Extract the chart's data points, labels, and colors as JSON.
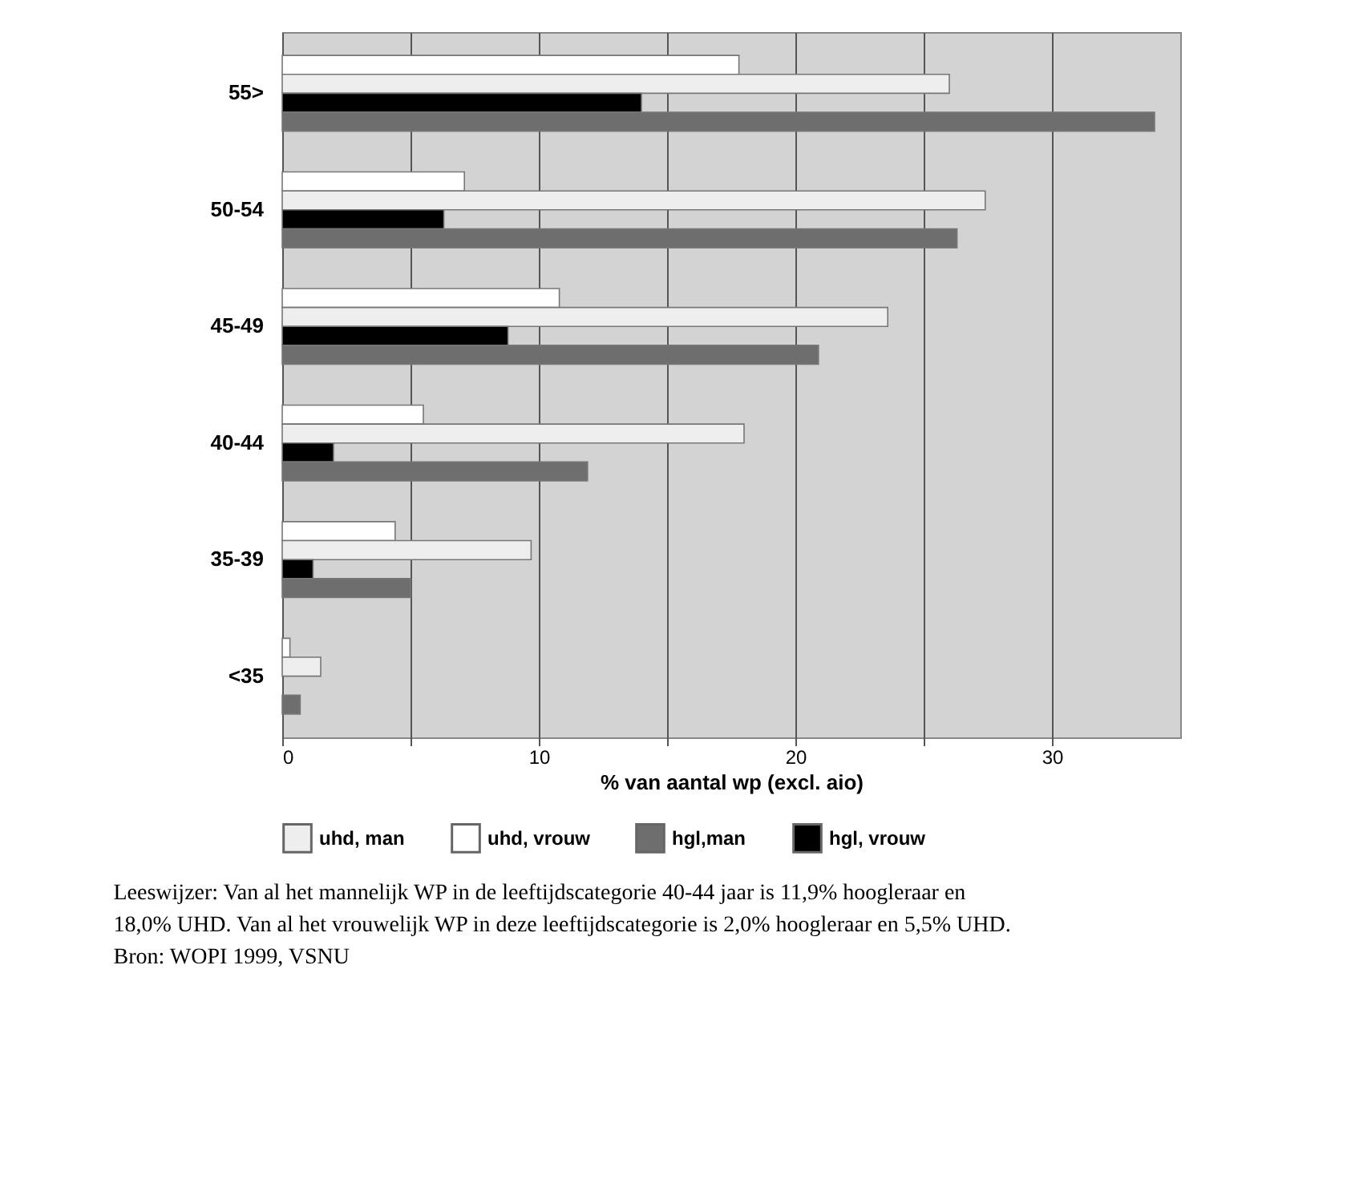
{
  "chart_data": {
    "type": "bar",
    "orientation": "horizontal",
    "categories": [
      "55>",
      "50-54",
      "45-49",
      "40-44",
      "35-39",
      "<35"
    ],
    "series": [
      {
        "name": "uhd, vrouw",
        "color": "#ffffff",
        "values": [
          17.8,
          7.1,
          10.8,
          5.5,
          4.4,
          0.3
        ]
      },
      {
        "name": "uhd, man",
        "color": "#eeeeee",
        "values": [
          26.0,
          27.4,
          23.6,
          18.0,
          9.7,
          1.5
        ]
      },
      {
        "name": "hgl, vrouw",
        "color": "#000000",
        "values": [
          14.0,
          6.3,
          8.8,
          2.0,
          1.2,
          null
        ]
      },
      {
        "name": "hgl,man",
        "color": "#6e6e6e",
        "values": [
          34.0,
          26.3,
          20.9,
          11.9,
          5.0,
          0.7
        ]
      }
    ],
    "xlabel": "% van aantal wp (excl. aio)",
    "xlim": [
      0,
      35
    ],
    "xticks": [
      0,
      {
        "value": 5,
        "label": null
      },
      10,
      {
        "value": 15,
        "label": null
      },
      20,
      {
        "value": 25,
        "label": null
      },
      30
    ],
    "grid": "x",
    "legend": "bottom",
    "annotations": [
      "Leeswijzer: Van al het mannelijk WP in de leeftijdscategorie 40-44 jaar is 11,9% hoogleraar en 18,0% UHD. Van al het vrouwelijk WP in deze leeftijdscategorie is 2,0% hoogleraar en 5,5% UHD.",
      "Bron: WOPI 1999, VSNU"
    ]
  }
}
